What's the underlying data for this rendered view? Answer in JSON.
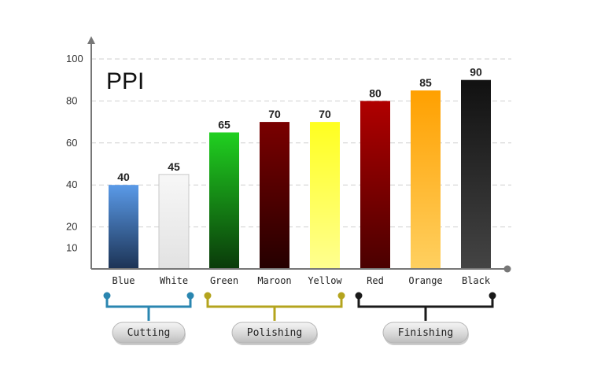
{
  "chart_data": {
    "type": "bar",
    "title": "PPI",
    "categories": [
      "Blue",
      "White",
      "Green",
      "Maroon",
      "Yellow",
      "Red",
      "Orange",
      "Black"
    ],
    "values": [
      40,
      45,
      65,
      70,
      70,
      80,
      85,
      90
    ],
    "yticks": [
      10,
      20,
      40,
      60,
      80,
      100
    ],
    "ylim": [
      0,
      100
    ],
    "grid": true,
    "xlabel": "",
    "ylabel": "",
    "bar_colors": [
      {
        "top": "#5a9ae8",
        "bottom": "#1c3355"
      },
      {
        "top": "#f7f7f7",
        "bottom": "#e2e2e2"
      },
      {
        "top": "#20d020",
        "bottom": "#0a3a0a"
      },
      {
        "top": "#7a0000",
        "bottom": "#250000"
      },
      {
        "top": "#ffff20",
        "bottom": "#ffff90"
      },
      {
        "top": "#b00000",
        "bottom": "#4a0000"
      },
      {
        "top": "#ffa000",
        "bottom": "#ffd060"
      },
      {
        "top": "#111111",
        "bottom": "#444444"
      }
    ],
    "groups": [
      {
        "label": "Cutting",
        "from": 0,
        "to": 1,
        "color": "#2a86b0"
      },
      {
        "label": "Polishing",
        "from": 2,
        "to": 4,
        "color": "#b4a41e"
      },
      {
        "label": "Finishing",
        "from": 5,
        "to": 7,
        "color": "#1a1a1a"
      }
    ]
  }
}
